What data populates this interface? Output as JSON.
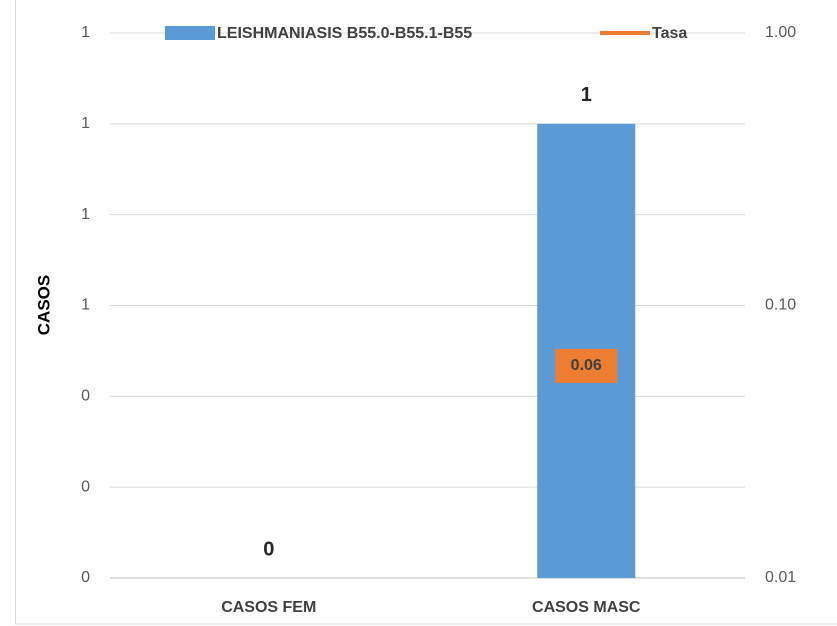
{
  "chart_data": {
    "type": "bar",
    "categories": [
      "CASOS FEM",
      "CASOS MASC"
    ],
    "y_label": "CASOS",
    "series": [
      {
        "name": "LEISHMANIASIS B55.0-B55.1-B55",
        "color": "#5b9bd5",
        "type": "bar",
        "values": [
          0,
          1
        ]
      },
      {
        "name": "Tasa",
        "color": "#ed7d31",
        "type": "line",
        "axis": "y2",
        "values": [
          null,
          0.06
        ]
      }
    ],
    "ylim": [
      0,
      1.2
    ],
    "yticks": [
      {
        "value": 0,
        "label": "0"
      },
      {
        "value": 0.2,
        "label": "0"
      },
      {
        "value": 0.4,
        "label": "0"
      },
      {
        "value": 0.6,
        "label": "1"
      },
      {
        "value": 0.8,
        "label": "1"
      },
      {
        "value": 1.0,
        "label": "1"
      },
      {
        "value": 1.2,
        "label": "1"
      }
    ],
    "y2lim": [
      0.01,
      1
    ],
    "y2ticks": [
      {
        "value": 0.01,
        "label": "0.01"
      },
      {
        "value": 0.1,
        "label": "0.10"
      },
      {
        "value": 1,
        "label": "1.00"
      }
    ],
    "y2_log": true,
    "grid": true,
    "legend": "top"
  }
}
